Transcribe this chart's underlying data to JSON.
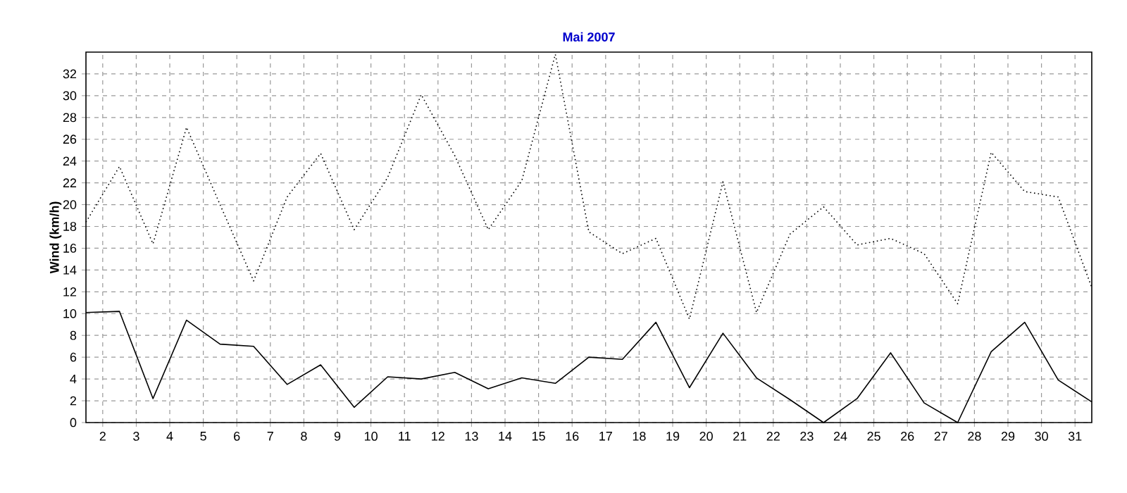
{
  "chart_data": {
    "type": "line",
    "title": "Mai 2007",
    "ylabel": "Wind  (km/h)",
    "x": [
      1.5,
      2.5,
      3.5,
      4.5,
      5.5,
      6.5,
      7.5,
      8.5,
      9.5,
      10.5,
      11.5,
      12.5,
      13.5,
      14.5,
      15.5,
      16.5,
      17.5,
      18.5,
      19.5,
      20.5,
      21.5,
      22.5,
      23.5,
      24.5,
      25.5,
      26.5,
      27.5,
      28.5,
      29.5,
      30.5,
      31.5
    ],
    "series": [
      {
        "color": "#000000",
        "line_style": "dotted",
        "values": [
          18.4,
          23.5,
          16.4,
          27.1,
          20,
          13.0,
          20.7,
          24.7,
          17.7,
          22.5,
          30.1,
          24.5,
          17.7,
          22.2,
          33.8,
          17.5,
          15.5,
          16.9,
          9.5,
          22.1,
          10.1,
          17.3,
          19.8,
          16.3,
          16.9,
          15.5,
          10.9,
          24.8,
          21.2,
          20.7,
          12.4
        ]
      },
      {
        "color": "#000000",
        "line_style": "solid",
        "values": [
          10.1,
          10.2,
          2.2,
          9.4,
          7.2,
          7.0,
          3.5,
          5.3,
          1.4,
          4.2,
          4.0,
          4.6,
          3.1,
          4.1,
          3.6,
          6.0,
          5.8,
          9.2,
          3.2,
          8.2,
          4.1,
          2.1,
          0,
          2.2,
          6.4,
          1.8,
          0,
          6.5,
          9.2,
          3.9,
          1.9
        ]
      }
    ],
    "xlim": [
      1.5,
      31.5
    ],
    "ylim": [
      0,
      34
    ],
    "xticks": [
      2,
      3,
      4,
      5,
      6,
      7,
      8,
      9,
      10,
      11,
      12,
      13,
      14,
      15,
      16,
      17,
      18,
      19,
      20,
      21,
      22,
      23,
      24,
      25,
      26,
      27,
      28,
      29,
      30,
      31
    ],
    "yticks": [
      0,
      2,
      4,
      6,
      8,
      10,
      12,
      14,
      16,
      18,
      20,
      22,
      24,
      26,
      28,
      30,
      32
    ],
    "grid": true,
    "marker": "none"
  }
}
